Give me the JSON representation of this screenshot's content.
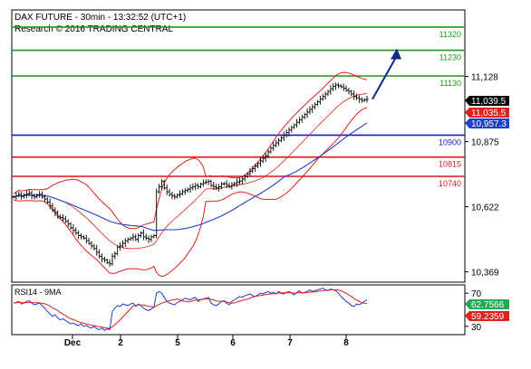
{
  "header": {
    "title": "DAX FUTURE - 30min - 13:32:52 (UTC+1)",
    "research": "Research © 2016 TRADING CENTRAL"
  },
  "colors": {
    "candle": "#000000",
    "bollinger": "#e0201b",
    "ma": "#1f3fd0",
    "resistance": "#1a9a1a",
    "pivot": "#1a1acc",
    "support": "#d41a1a",
    "arrow": "#0d2a8a",
    "label_black": "#000000",
    "label_red": "#e0201b",
    "label_blue": "#1f3fd0",
    "label_green_rsi": "#22aa55",
    "label_red_rsi": "#e0201b"
  },
  "chart_data": [
    {
      "type": "candlestick",
      "title": "DAX FUTURE - 30min - 13:32:52 (UTC+1)",
      "x_tick_labels": [
        "Dec",
        "2",
        "5",
        "6",
        "7",
        "8"
      ],
      "y_tick_labels": [
        "11,128",
        "10,875",
        "10,622",
        "10,369"
      ],
      "ylim": [
        10300,
        11330
      ],
      "levels": [
        {
          "name": "11320",
          "value": 11320,
          "kind": "resistance"
        },
        {
          "name": "11230",
          "value": 11230,
          "kind": "resistance"
        },
        {
          "name": "11130",
          "value": 11130,
          "kind": "resistance"
        },
        {
          "name": "10900",
          "value": 10900,
          "kind": "pivot"
        },
        {
          "name": "10815",
          "value": 10815,
          "kind": "support"
        },
        {
          "name": "10740",
          "value": 10740,
          "kind": "support"
        }
      ],
      "last_values": [
        {
          "label": "11,039.5",
          "kind": "last"
        },
        {
          "label": "11,035.5",
          "kind": "bollinger"
        },
        {
          "label": "10,957.3",
          "kind": "ma"
        }
      ],
      "arrow": {
        "from": {
          "t": 180,
          "price": 11040
        },
        "to": {
          "t": 190,
          "price": 11230
        }
      },
      "closes": [
        10660,
        10665,
        10670,
        10662,
        10668,
        10672,
        10675,
        10665,
        10660,
        10668,
        10670,
        10660,
        10652,
        10640,
        10625,
        10610,
        10600,
        10585,
        10580,
        10575,
        10565,
        10555,
        10540,
        10530,
        10520,
        10510,
        10505,
        10500,
        10490,
        10480,
        10470,
        10460,
        10445,
        10430,
        10420,
        10415,
        10405,
        10400,
        10430,
        10440,
        10465,
        10470,
        10480,
        10490,
        10495,
        10500,
        10505,
        10495,
        10510,
        10520,
        10505,
        10500,
        10495,
        10505,
        10510,
        10680,
        10700,
        10720,
        10695,
        10680,
        10670,
        10665,
        10660,
        10668,
        10672,
        10680,
        10685,
        10690,
        10695,
        10700,
        10705,
        10700,
        10710,
        10715,
        10718,
        10720,
        10705,
        10700,
        10695,
        10700,
        10710,
        10712,
        10705,
        10700,
        10708,
        10712,
        10718,
        10722,
        10730,
        10740,
        10750,
        10760,
        10770,
        10780,
        10790,
        10800,
        10810,
        10820,
        10835,
        10850,
        10860,
        10870,
        10880,
        10890,
        10900,
        10910,
        10920,
        10930,
        10940,
        10950,
        10960,
        10970,
        10980,
        10990,
        11000,
        11010,
        11020,
        11030,
        11040,
        11050,
        11060,
        11070,
        11080,
        11090,
        11095,
        11092,
        11088,
        11082,
        11075,
        11070,
        11060,
        11050,
        11045,
        11040,
        11035,
        11038,
        11040
      ]
    },
    {
      "type": "line",
      "title": "RSI14 - 9MA",
      "y_tick_labels": [
        "70",
        "30"
      ],
      "ylim": [
        20,
        80
      ],
      "last_values": [
        {
          "label": "62.7566",
          "kind": "rsi"
        },
        {
          "label": "59.2359",
          "kind": "rsi_ma"
        }
      ],
      "rsi": [
        58,
        59,
        60,
        57,
        58,
        60,
        61,
        58,
        56,
        57,
        58,
        55,
        52,
        48,
        45,
        42,
        44,
        40,
        38,
        39,
        37,
        35,
        33,
        34,
        32,
        31,
        33,
        30,
        31,
        29,
        28,
        30,
        27,
        26,
        28,
        25,
        27,
        26,
        48,
        52,
        55,
        54,
        57,
        56,
        55,
        57,
        58,
        54,
        57,
        55,
        52,
        50,
        49,
        51,
        53,
        70,
        72,
        70,
        65,
        60,
        58,
        57,
        56,
        59,
        60,
        62,
        64,
        63,
        62,
        64,
        65,
        60,
        62,
        63,
        64,
        65,
        58,
        56,
        55,
        57,
        60,
        61,
        58,
        56,
        60,
        62,
        64,
        66,
        65,
        67,
        68,
        69,
        67,
        66,
        68,
        70,
        69,
        71,
        72,
        70,
        71,
        69,
        72,
        70,
        69,
        71,
        72,
        70,
        68,
        71,
        73,
        70,
        71,
        72,
        74,
        72,
        73,
        74,
        75,
        76,
        74,
        73,
        75,
        74,
        73,
        70,
        66,
        63,
        60,
        58,
        55,
        54,
        57,
        56,
        58,
        60,
        62
      ]
    }
  ]
}
